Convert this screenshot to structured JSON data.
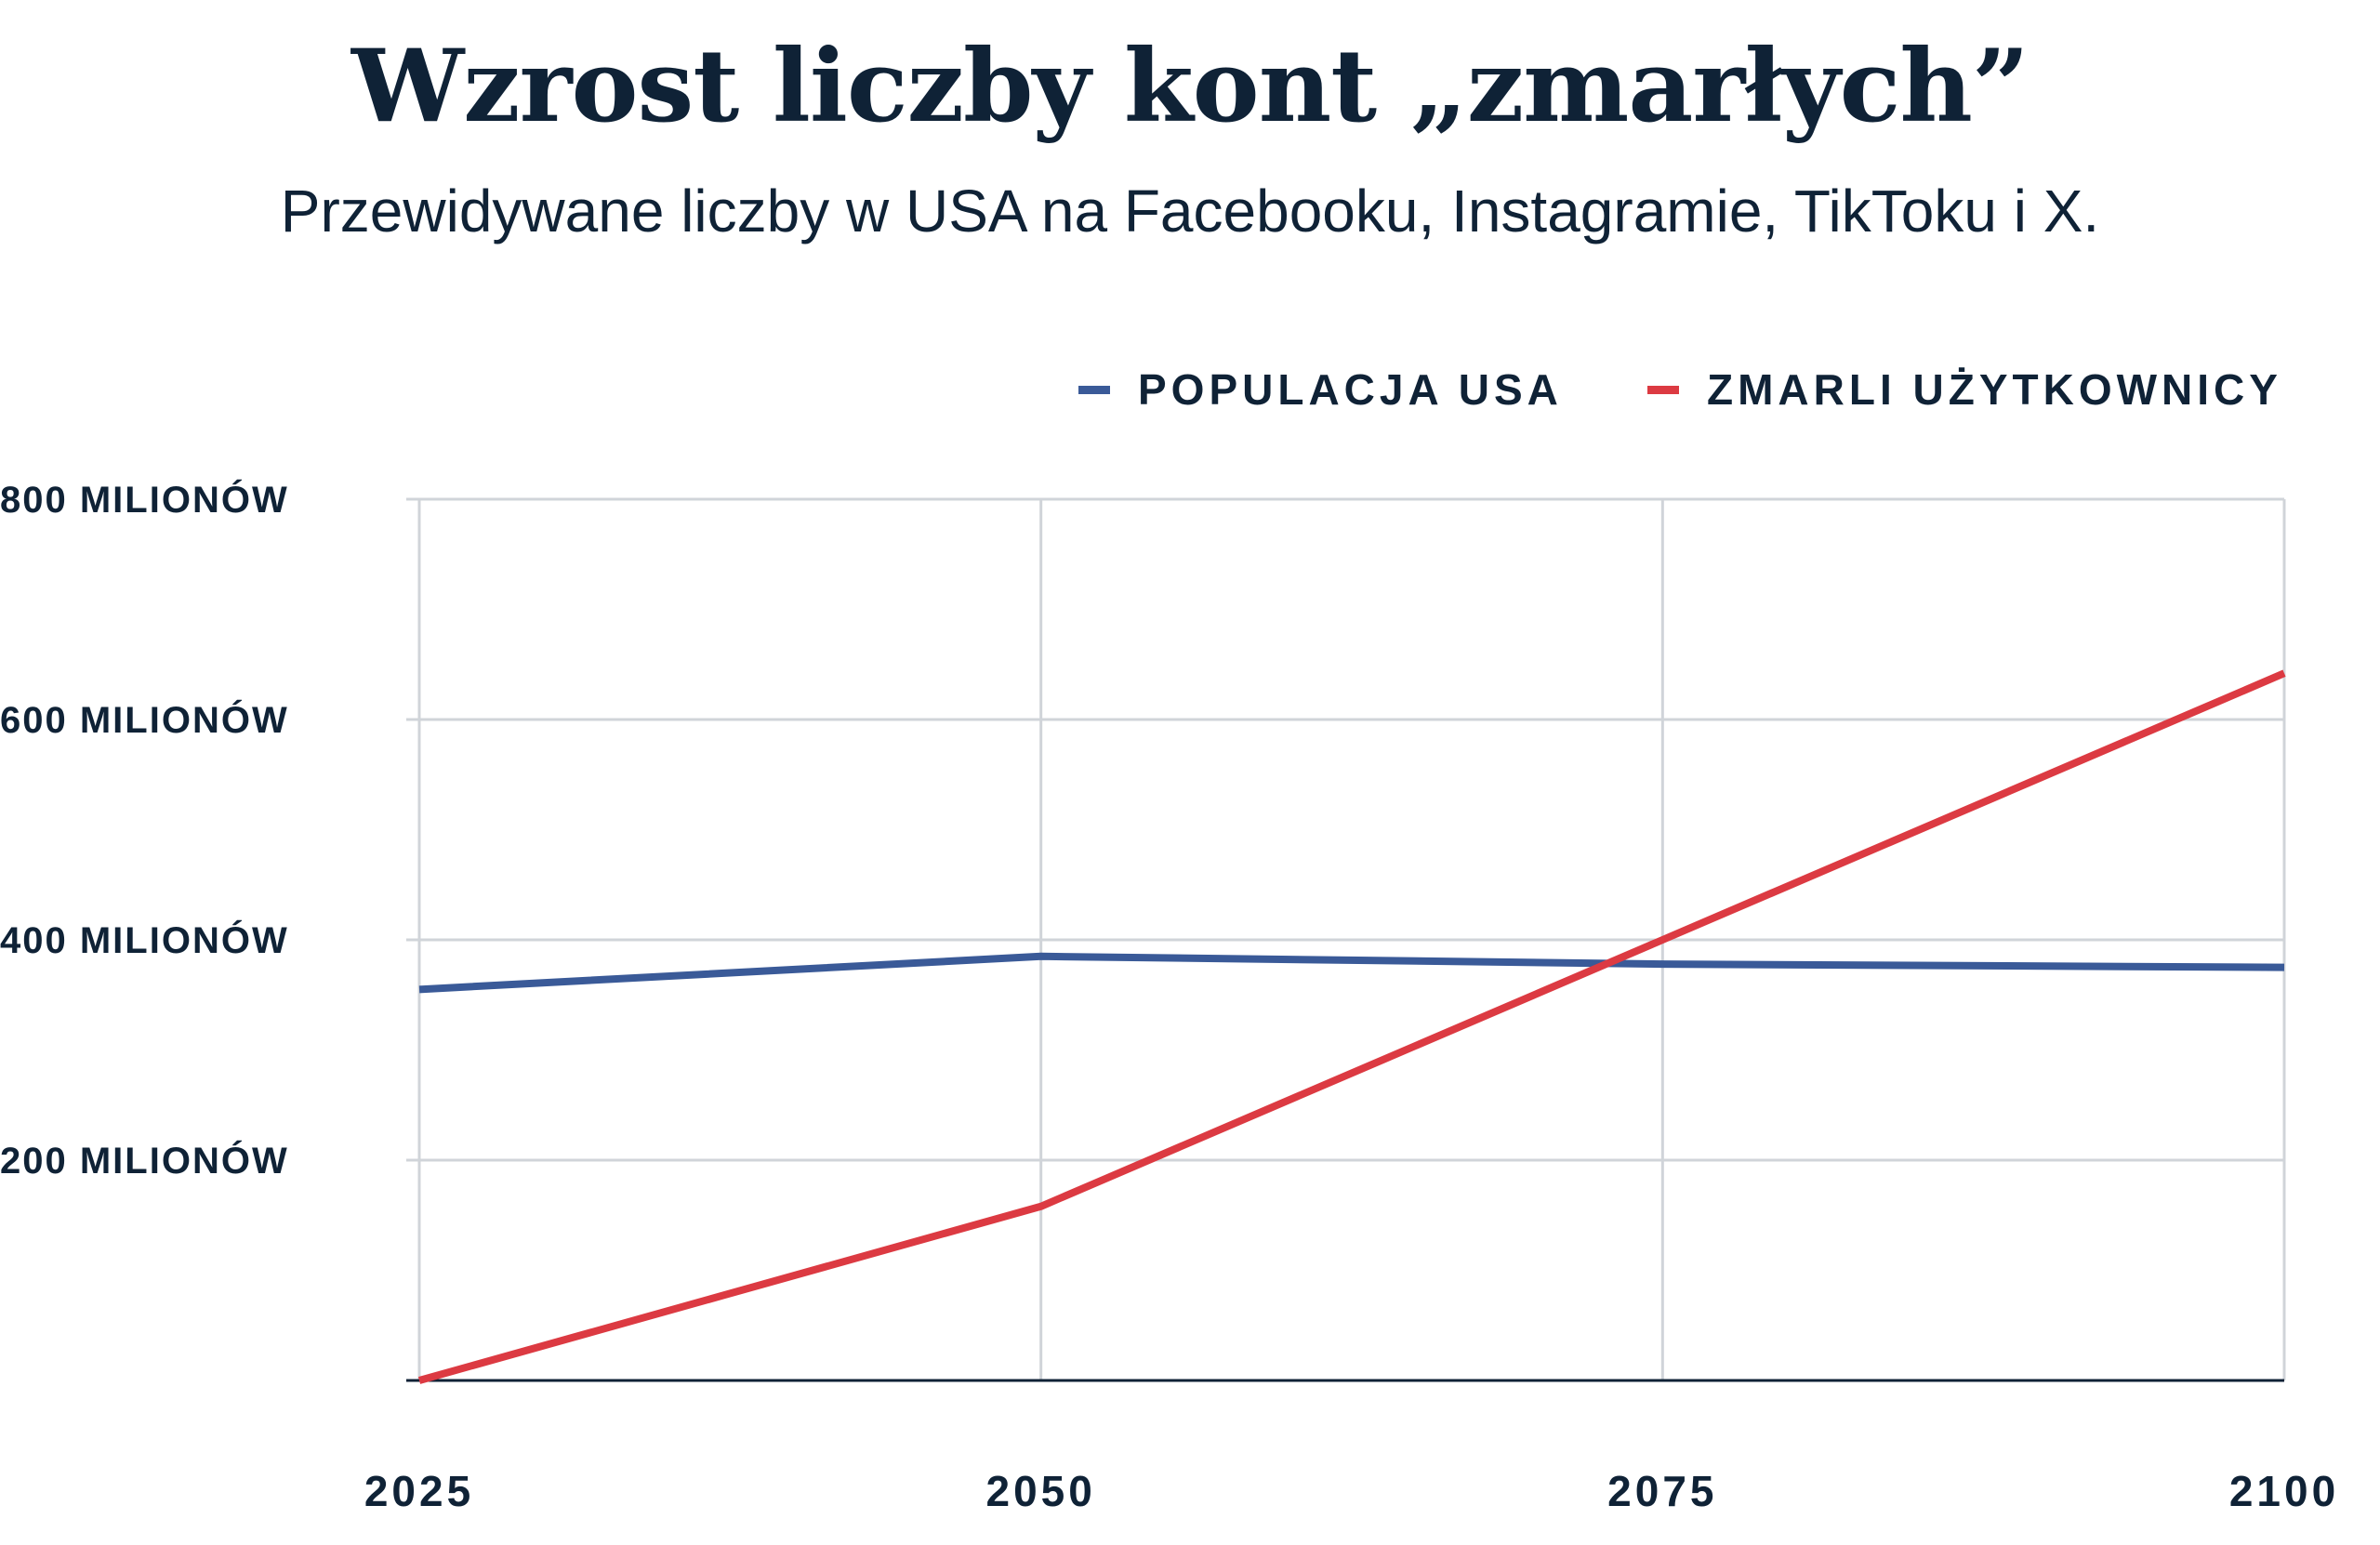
{
  "title": "Wzrost liczby kont „zmarłych”",
  "subtitle": "Przewidywane liczby w USA na Facebooku, Instagramie, TikToku i X.",
  "chart_data": {
    "type": "line",
    "x": [
      2025,
      2050,
      2075,
      2100
    ],
    "x_tick_labels": [
      "2025",
      "2050",
      "2075",
      "2100"
    ],
    "y_ticks": [
      200,
      400,
      600,
      800
    ],
    "y_tick_labels": [
      "200 MILIONÓW",
      "400 MILIONÓW",
      "600 MILIONÓW",
      "800 MILIONÓW"
    ],
    "ylim": [
      0,
      800
    ],
    "grid": true,
    "legend_position": "top-right",
    "series": [
      {
        "name": "POPULACJA USA",
        "color": "#3a5a98",
        "values": [
          355,
          385,
          378,
          375
        ]
      },
      {
        "name": "ZMARLI UŻYTKOWNICY",
        "color": "#dc3a42",
        "values": [
          0,
          158,
          400,
          642
        ]
      }
    ]
  }
}
